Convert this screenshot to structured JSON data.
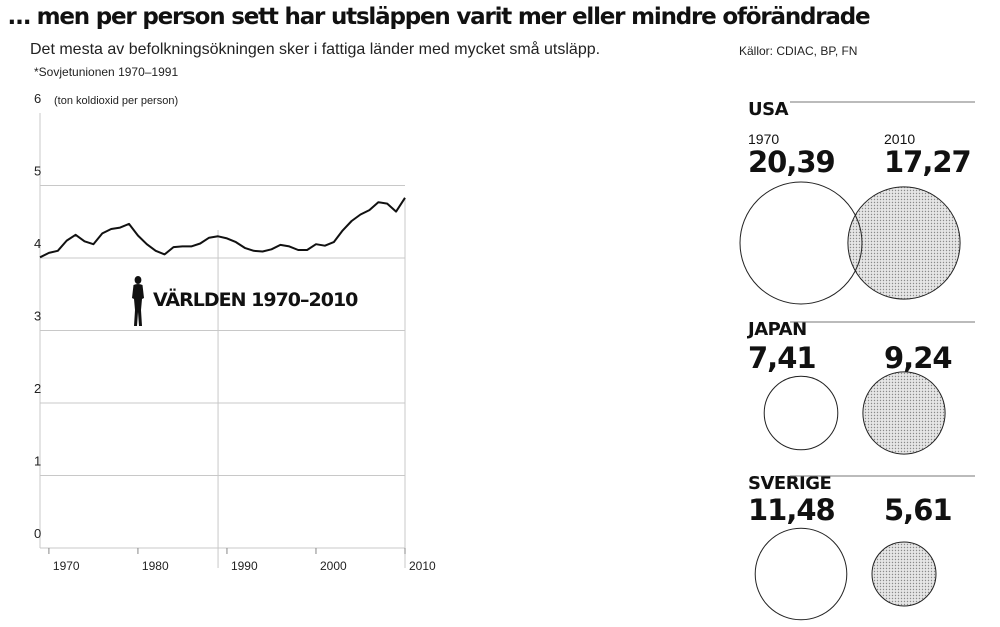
{
  "header": {
    "title": "… men per person sett har utsläppen varit mer eller mindre oförändrade",
    "subtitle": "Det mesta av befolkningsökningen sker i fattiga länder med mycket små utsläpp.",
    "note": "*Sovjetunionen 1970–1991",
    "sources": "Källor: CDIAC, BP, FN"
  },
  "chart_data": [
    {
      "type": "line",
      "title": "",
      "ylabel": "(ton koldioxid per person)",
      "xlabel": "",
      "annotation": "VÄRLDEN 1970–2010",
      "xlim": [
        1969,
        2010
      ],
      "ylim": [
        0,
        6
      ],
      "yticks": [
        "0",
        "1",
        "2",
        "3",
        "4",
        "5",
        "6"
      ],
      "xticks": [
        "1970",
        "1980",
        "1990",
        "2000",
        "2010"
      ],
      "grid": "horizontal",
      "series": [
        {
          "name": "",
          "x": [
            1969,
            1970,
            1971,
            1972,
            1973,
            1974,
            1975,
            1976,
            1977,
            1978,
            1979,
            1980,
            1981,
            1982,
            1983,
            1984,
            1985,
            1986,
            1987,
            1988,
            1989,
            1990,
            1991,
            1992,
            1993,
            1994,
            1995,
            1996,
            1997,
            1998,
            1999,
            2000,
            2001,
            2002,
            2003,
            2004,
            2005,
            2006,
            2007,
            2008,
            2009,
            2010
          ],
          "values": [
            4.01,
            4.07,
            4.1,
            4.24,
            4.32,
            4.23,
            4.19,
            4.34,
            4.4,
            4.42,
            4.47,
            4.31,
            4.19,
            4.1,
            4.05,
            4.15,
            4.16,
            4.16,
            4.2,
            4.28,
            4.3,
            4.27,
            4.22,
            4.14,
            4.1,
            4.09,
            4.12,
            4.18,
            4.16,
            4.11,
            4.11,
            4.19,
            4.17,
            4.22,
            4.38,
            4.51,
            4.6,
            4.66,
            4.77,
            4.75,
            4.64,
            4.83
          ]
        }
      ]
    },
    {
      "type": "bubble",
      "title": "",
      "unit": "ton koldioxid per person",
      "columns": [
        "1970",
        "2010"
      ],
      "countries": [
        {
          "name": "USA",
          "values": [
            20.39,
            17.27
          ],
          "labels": [
            "20,39",
            "17,27"
          ]
        },
        {
          "name": "JAPAN",
          "values": [
            7.41,
            9.24
          ],
          "labels": [
            "7,41",
            "9,24"
          ]
        },
        {
          "name": "SVERIGE",
          "values": [
            11.48,
            5.61
          ],
          "labels": [
            "11,48",
            "5,61"
          ]
        }
      ],
      "fill_1970": "#ffffff",
      "fill_2010": "#d9d9d9"
    }
  ],
  "colors": {
    "line": "#111111",
    "grid": "#c8c8c8",
    "outline": "#222222"
  },
  "icons": {
    "figure": "person-silhouette-icon"
  }
}
